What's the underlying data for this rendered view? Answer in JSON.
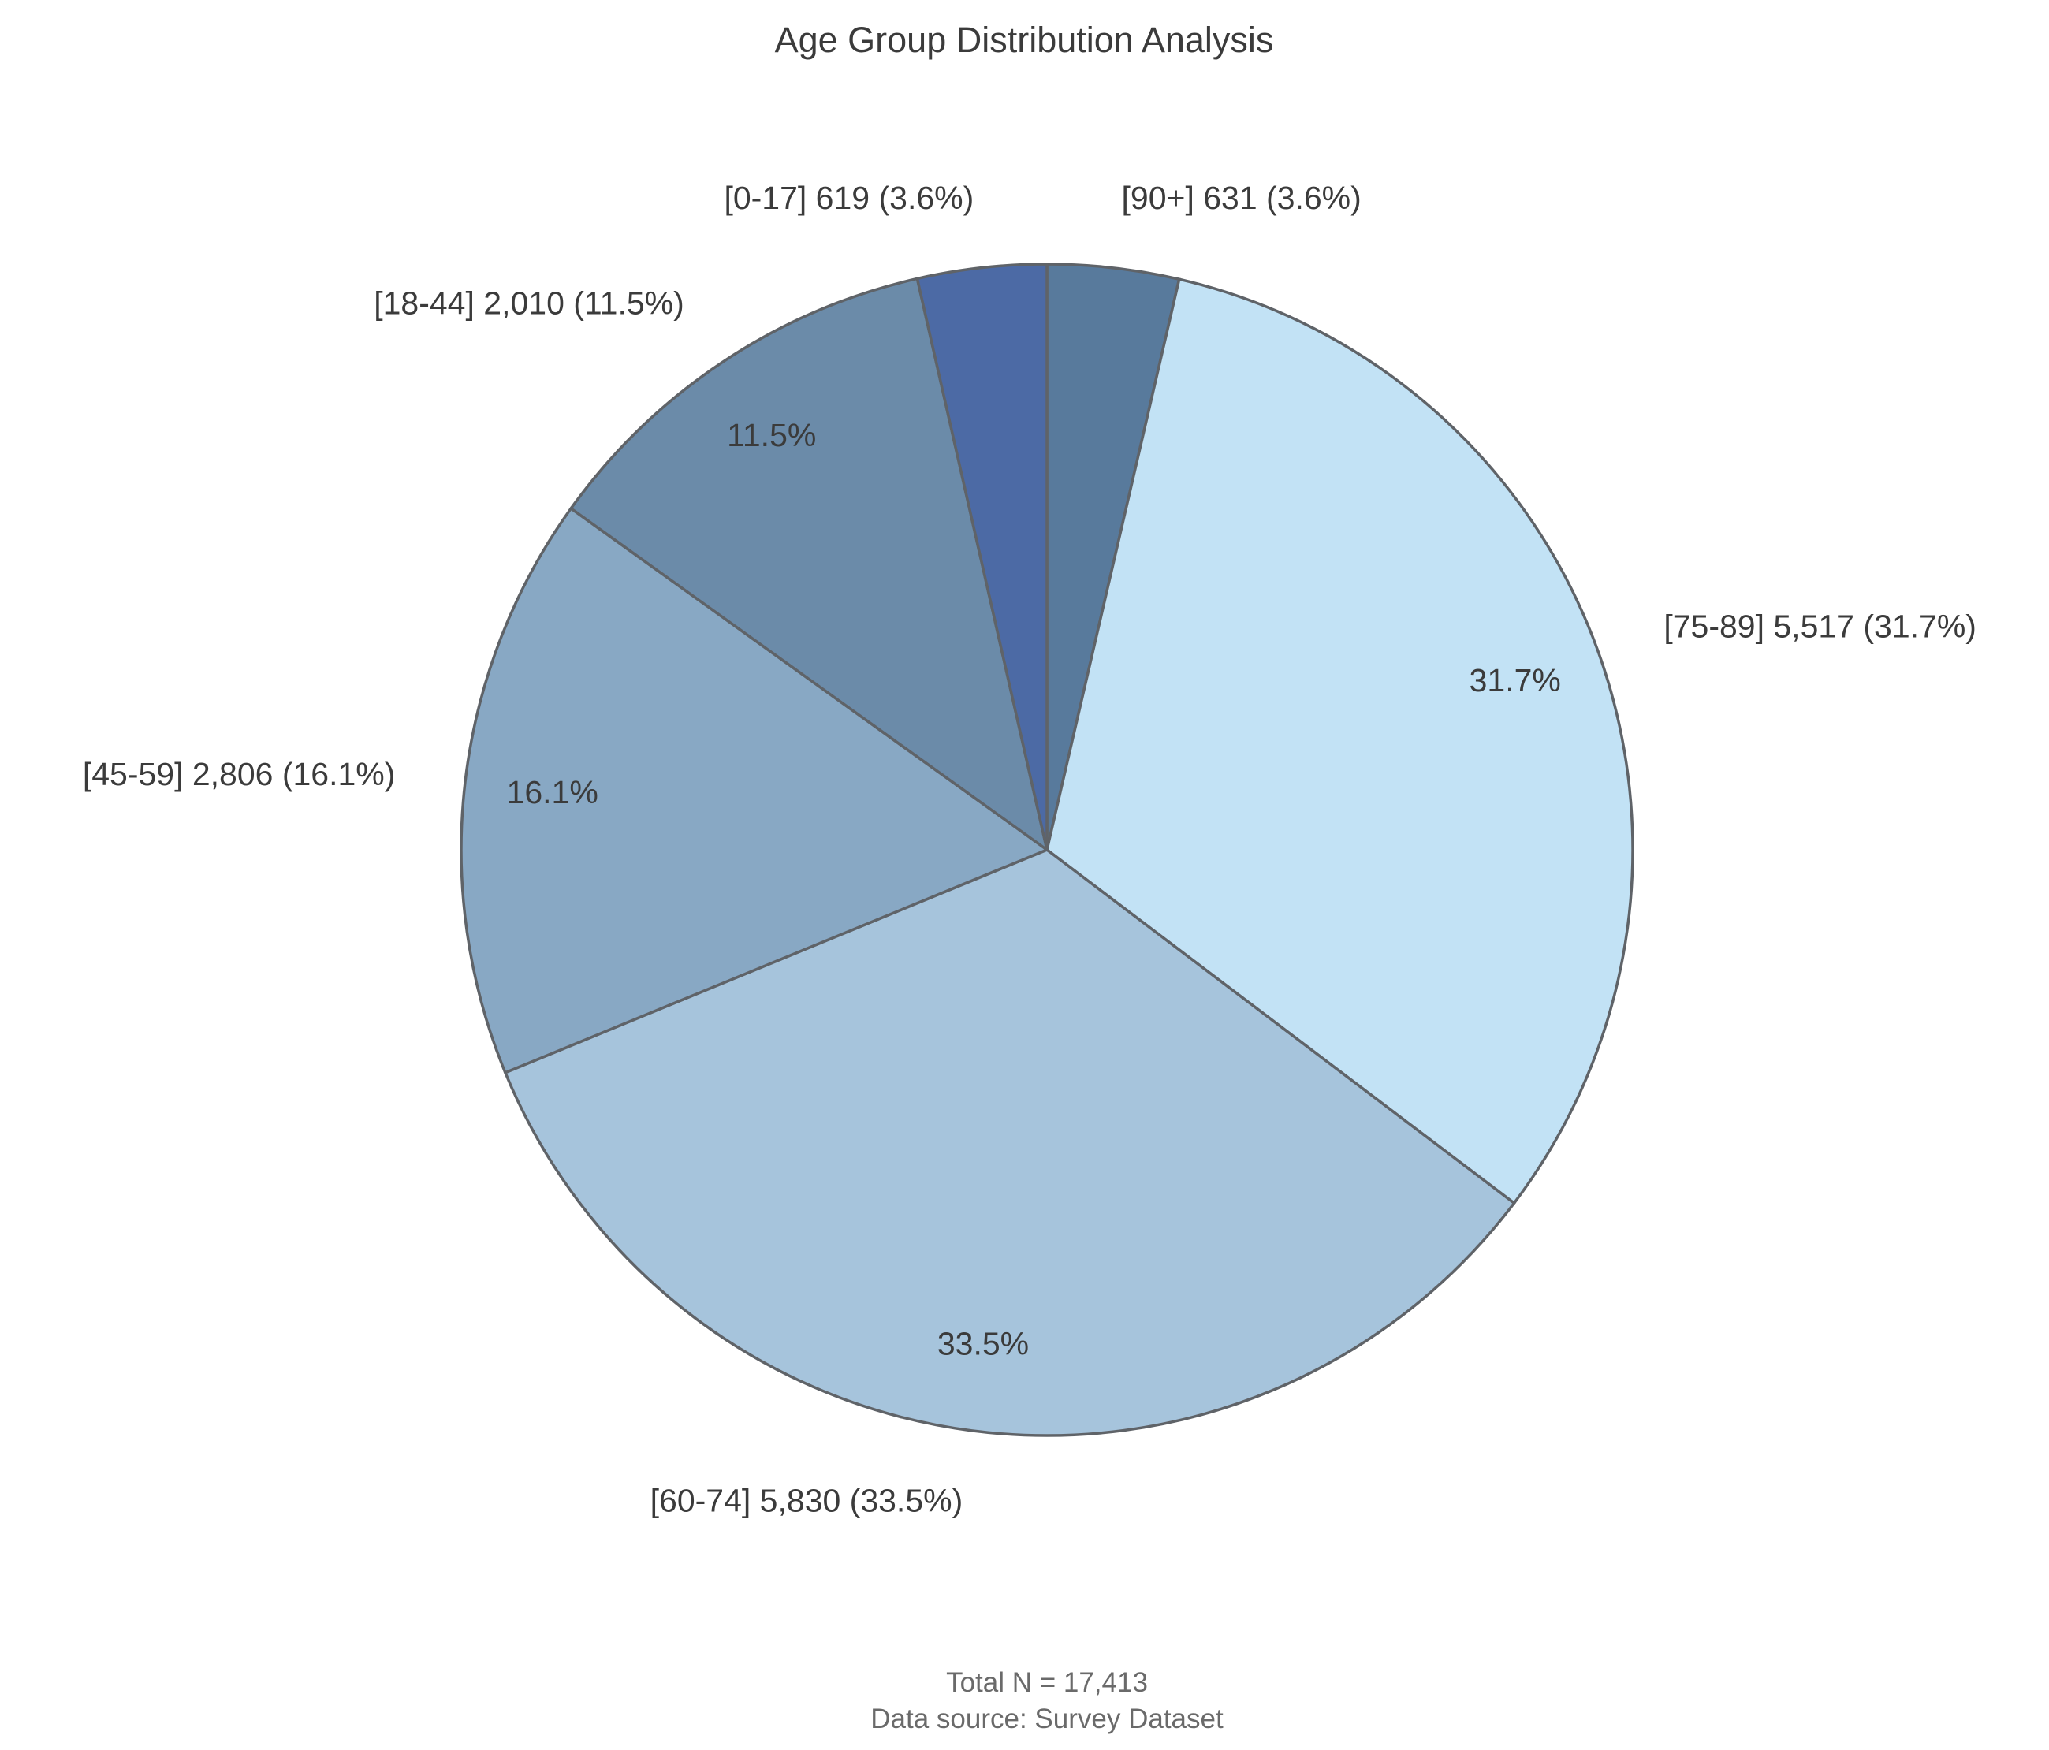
{
  "chart_data": {
    "type": "pie",
    "title": "Age Group Distribution Analysis",
    "start_angle_deg": 90,
    "direction": "clockwise",
    "slices": [
      {
        "category": "[90+]",
        "value": 631,
        "label": "[90+] 631 (3.6%)",
        "pct_label": "",
        "color": "#587a9c"
      },
      {
        "category": "[75-89]",
        "value": 5517,
        "label": "[75-89] 5,517 (31.7%)",
        "pct_label": "31.7%",
        "color": "#c2e2f5"
      },
      {
        "category": "[60-74]",
        "value": 5830,
        "label": "[60-74] 5,830 (33.5%)",
        "pct_label": "33.5%",
        "color": "#a6c4dc"
      },
      {
        "category": "[45-59]",
        "value": 2806,
        "label": "[45-59] 2,806 (16.1%)",
        "pct_label": "16.1%",
        "color": "#88a8c4"
      },
      {
        "category": "[18-44]",
        "value": 2010,
        "label": "[18-44] 2,010 (11.5%)",
        "pct_label": "11.5%",
        "color": "#6b8ba9"
      },
      {
        "category": "[0-17]",
        "value": 619,
        "label": "[0-17] 619 (3.6%)",
        "pct_label": "",
        "color": "#4c6aa5"
      }
    ],
    "edge_color": "#5f6368",
    "footer_lines": [
      "Total N = 17,413",
      "Data source: Survey Dataset"
    ]
  }
}
